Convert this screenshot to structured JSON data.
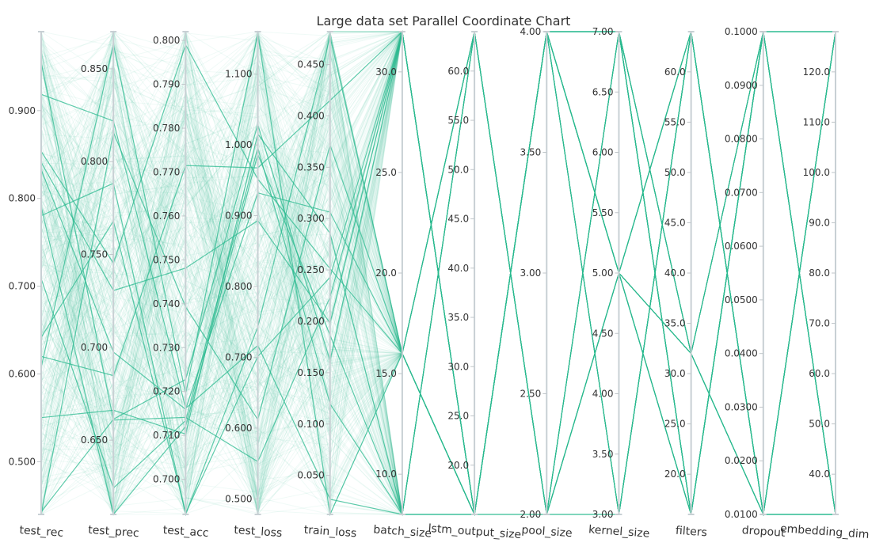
{
  "chart_data": {
    "type": "parallel_coordinates",
    "title": "Large data set Parallel Coordinate Chart",
    "line_color": "#2ab98f",
    "axes": [
      {
        "label": "test_rec",
        "ticks": [
          "0.500",
          "0.600",
          "0.700",
          "0.800",
          "0.900"
        ],
        "range": [
          0.44,
          0.99
        ]
      },
      {
        "label": "test_prec",
        "ticks": [
          "0.650",
          "0.700",
          "0.750",
          "0.800",
          "0.850"
        ],
        "range": [
          0.61,
          0.87
        ]
      },
      {
        "label": "test_acc",
        "ticks": [
          "0.700",
          "0.710",
          "0.720",
          "0.730",
          "0.740",
          "0.750",
          "0.760",
          "0.770",
          "0.780",
          "0.790",
          "0.800"
        ],
        "range": [
          0.692,
          0.802
        ]
      },
      {
        "label": "test_loss",
        "ticks": [
          "0.500",
          "0.600",
          "0.700",
          "0.800",
          "0.900",
          "1.000",
          "1.100"
        ],
        "range": [
          0.478,
          1.16
        ]
      },
      {
        "label": "train_loss",
        "ticks": [
          "0.050",
          "0.100",
          "0.150",
          "0.200",
          "0.250",
          "0.300",
          "0.350",
          "0.400",
          "0.450"
        ],
        "range": [
          0.012,
          0.482
        ]
      },
      {
        "label": "batch_size",
        "ticks": [
          "10.0",
          "15.0",
          "20.0",
          "25.0",
          "30.0"
        ],
        "range": [
          8.0,
          32.0
        ]
      },
      {
        "label": "lstm_output_size",
        "ticks": [
          "20.0",
          "25.0",
          "30.0",
          "35.0",
          "40.0",
          "45.0",
          "50.0",
          "55.0",
          "60.0"
        ],
        "range": [
          15.0,
          64.0
        ]
      },
      {
        "label": "pool_size",
        "ticks": [
          "2.00",
          "2.50",
          "3.00",
          "3.50",
          "4.00"
        ],
        "range": [
          2.0,
          4.0
        ]
      },
      {
        "label": "kernel_size",
        "ticks": [
          "3.00",
          "3.50",
          "4.00",
          "4.50",
          "5.00",
          "5.50",
          "6.00",
          "6.50",
          "7.00"
        ],
        "range": [
          3.0,
          7.0
        ]
      },
      {
        "label": "filters",
        "ticks": [
          "20.0",
          "25.0",
          "30.0",
          "35.0",
          "40.0",
          "45.0",
          "50.0",
          "55.0",
          "60.0"
        ],
        "range": [
          16.0,
          64.0
        ]
      },
      {
        "label": "dropout",
        "ticks": [
          "0.0100",
          "0.0200",
          "0.0300",
          "0.0400",
          "0.0500",
          "0.0600",
          "0.0700",
          "0.0800",
          "0.0900",
          "0.1000"
        ],
        "range": [
          0.01,
          0.1
        ]
      },
      {
        "label": "embedding_dim",
        "ticks": [
          "40.0",
          "50.0",
          "60.0",
          "70.0",
          "80.0",
          "90.0",
          "100.0",
          "110.0",
          "120.0"
        ],
        "range": [
          32.0,
          128.0
        ]
      }
    ],
    "grid": false,
    "legend": "none"
  }
}
